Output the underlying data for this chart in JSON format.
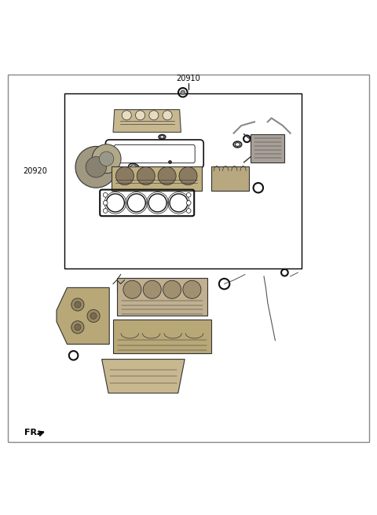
{
  "title": "20910",
  "label_box": "20920",
  "fr_label": "FR.",
  "bg_color": "#ffffff",
  "border_color": "#000000",
  "line_color": "#333333",
  "part_color_light": "#d0c8b0",
  "part_color_dark": "#888888",
  "part_color_gray": "#aaaaaa",
  "fig_width": 4.8,
  "fig_height": 6.56,
  "dpi": 100
}
